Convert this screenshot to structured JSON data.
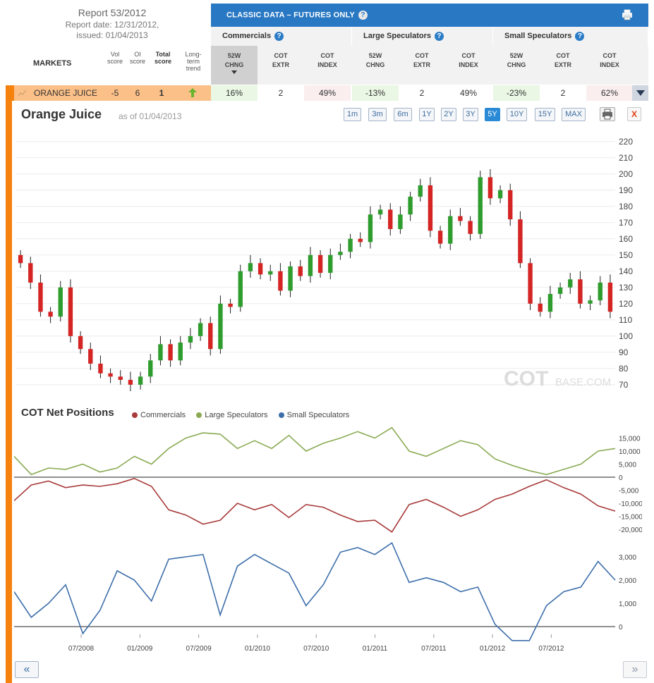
{
  "report": {
    "title": "Report 53/2012",
    "report_date": "Report date: 12/31/2012,",
    "issued": "issued: 01/04/2013"
  },
  "markets_header": {
    "label": "MARKETS",
    "vol_score": "Vol score",
    "oi_score": "OI score",
    "total_score": "Total score",
    "trend": "Long-term trend"
  },
  "classic": {
    "title": "CLASSIC DATA – FUTURES ONLY",
    "help": "?",
    "groups": [
      "Commercials",
      "Large Speculators",
      "Small Speculators"
    ],
    "columns": [
      {
        "l1": "52W",
        "l2": "CHNG"
      },
      {
        "l1": "COT",
        "l2": "EXTR"
      },
      {
        "l1": "COT",
        "l2": "INDEX"
      },
      {
        "l1": "52W",
        "l2": "CHNG"
      },
      {
        "l1": "COT",
        "l2": "EXTR"
      },
      {
        "l1": "COT",
        "l2": "INDEX"
      },
      {
        "l1": "52W",
        "l2": "CHNG"
      },
      {
        "l1": "COT",
        "l2": "EXTR"
      },
      {
        "l1": "COT",
        "l2": "INDEX"
      }
    ]
  },
  "row": {
    "market": "ORANGE JUICE",
    "vol": "-5",
    "oi": "6",
    "total": "1",
    "trend": "up",
    "cells": [
      "16%",
      "2",
      "49%",
      "-13%",
      "2",
      "49%",
      "-23%",
      "2",
      "62%"
    ]
  },
  "chart": {
    "title": "Orange Juice",
    "asof": "as of 01/04/2013",
    "ranges": [
      "1m",
      "3m",
      "6m",
      "1Y",
      "2Y",
      "3Y",
      "5Y",
      "10Y",
      "15Y",
      "MAX"
    ],
    "active_range": "5Y",
    "close_label": "X",
    "watermark_main": "COT",
    "watermark_sub": "BASE.COM"
  },
  "cot": {
    "title": "COT Net Positions",
    "legend": [
      "Commercials",
      "Large Speculators",
      "Small Speculators"
    ]
  },
  "nav": {
    "prev": "«",
    "next": "»"
  },
  "colors": {
    "up": "#2e9d2e",
    "down": "#d42424",
    "commercials": "#a83a3a",
    "large": "#8aaa52",
    "small": "#3d6eaa",
    "accent": "#2878c3",
    "orange": "#f5820f"
  },
  "chart_data": [
    {
      "type": "candlestick",
      "title": "Orange Juice",
      "y_ticks": [
        70,
        80,
        90,
        100,
        110,
        120,
        130,
        140,
        150,
        160,
        170,
        180,
        190,
        200,
        210,
        220
      ],
      "ylim": [
        66,
        226
      ],
      "x_ticks": [
        "07/2008",
        "01/2009",
        "07/2009",
        "01/2010",
        "07/2010",
        "01/2011",
        "07/2011",
        "01/2012",
        "07/2012"
      ],
      "x": [
        "2008-01",
        "2008-02",
        "2008-03",
        "2008-04",
        "2008-05",
        "2008-06",
        "2008-07",
        "2008-08",
        "2008-09",
        "2008-10",
        "2008-11",
        "2008-12",
        "2009-01",
        "2009-02",
        "2009-03",
        "2009-04",
        "2009-05",
        "2009-06",
        "2009-07",
        "2009-08",
        "2009-09",
        "2009-10",
        "2009-11",
        "2009-12",
        "2010-01",
        "2010-02",
        "2010-03",
        "2010-04",
        "2010-05",
        "2010-06",
        "2010-07",
        "2010-08",
        "2010-09",
        "2010-10",
        "2010-11",
        "2010-12",
        "2011-01",
        "2011-02",
        "2011-03",
        "2011-04",
        "2011-05",
        "2011-06",
        "2011-07",
        "2011-08",
        "2011-09",
        "2011-10",
        "2011-11",
        "2011-12",
        "2012-01",
        "2012-02",
        "2012-03",
        "2012-04",
        "2012-05",
        "2012-06",
        "2012-07",
        "2012-08",
        "2012-09",
        "2012-10",
        "2012-11",
        "2012-12"
      ],
      "close": [
        145,
        133,
        115,
        112,
        130,
        100,
        92,
        83,
        77,
        75,
        73,
        70,
        75,
        85,
        95,
        85,
        96,
        100,
        108,
        92,
        120,
        118,
        140,
        145,
        138,
        140,
        128,
        143,
        137,
        150,
        139,
        150,
        152,
        160,
        158,
        175,
        178,
        166,
        175,
        186,
        193,
        165,
        157,
        174,
        171,
        163,
        198,
        185,
        190,
        172,
        145,
        120,
        115,
        126,
        130,
        135,
        120,
        122,
        133,
        115
      ],
      "open": [
        150,
        145,
        133,
        115,
        112,
        130,
        100,
        92,
        83,
        77,
        75,
        73,
        70,
        75,
        85,
        95,
        85,
        96,
        100,
        108,
        92,
        120,
        118,
        140,
        145,
        138,
        140,
        128,
        143,
        137,
        150,
        139,
        150,
        152,
        160,
        158,
        175,
        178,
        166,
        175,
        186,
        193,
        165,
        157,
        174,
        171,
        163,
        198,
        185,
        190,
        172,
        145,
        120,
        115,
        126,
        130,
        135,
        120,
        122,
        133
      ]
    },
    {
      "type": "line",
      "title": "COT Net Positions",
      "series": [
        {
          "name": "Commercials",
          "values": [
            -9000,
            -3000,
            -1500,
            -4000,
            -3000,
            -3500,
            -2500,
            -500,
            -3500,
            -12500,
            -14500,
            -18000,
            -16500,
            -10000,
            -12500,
            -10500,
            -15500,
            -10500,
            -11500,
            -14500,
            -17000,
            -16500,
            -21000,
            -10500,
            -8500,
            -11500,
            -15000,
            -12500,
            -8500,
            -6500,
            -3500,
            -1000,
            -4000,
            -6500,
            -11000,
            -13000
          ]
        },
        {
          "name": "Large Speculators",
          "values": [
            8000,
            1000,
            3500,
            3000,
            5000,
            2000,
            3500,
            8000,
            5000,
            11000,
            15000,
            17000,
            16500,
            11000,
            14000,
            11000,
            16000,
            10000,
            13000,
            15000,
            17500,
            15000,
            19000,
            10000,
            8000,
            11000,
            14000,
            12500,
            7000,
            4500,
            2500,
            1000,
            3000,
            5000,
            10000,
            11000
          ]
        },
        {
          "name": "Small Speculators",
          "values": [
            1500,
            400,
            1000,
            1800,
            -300,
            700,
            2400,
            2000,
            1100,
            2900,
            3000,
            3100,
            500,
            2600,
            3100,
            2700,
            2300,
            900,
            1800,
            3200,
            3400,
            3100,
            3600,
            1900,
            2100,
            1900,
            1500,
            1700,
            100,
            -600,
            -600,
            900,
            1500,
            1700,
            2800,
            2000
          ]
        }
      ],
      "y_ticks_top": [
        15000,
        10000,
        5000,
        0,
        -5000,
        -10000,
        -15000,
        -20000
      ],
      "y_ticks_bottom": [
        3000,
        2000,
        1000,
        0
      ]
    }
  ]
}
